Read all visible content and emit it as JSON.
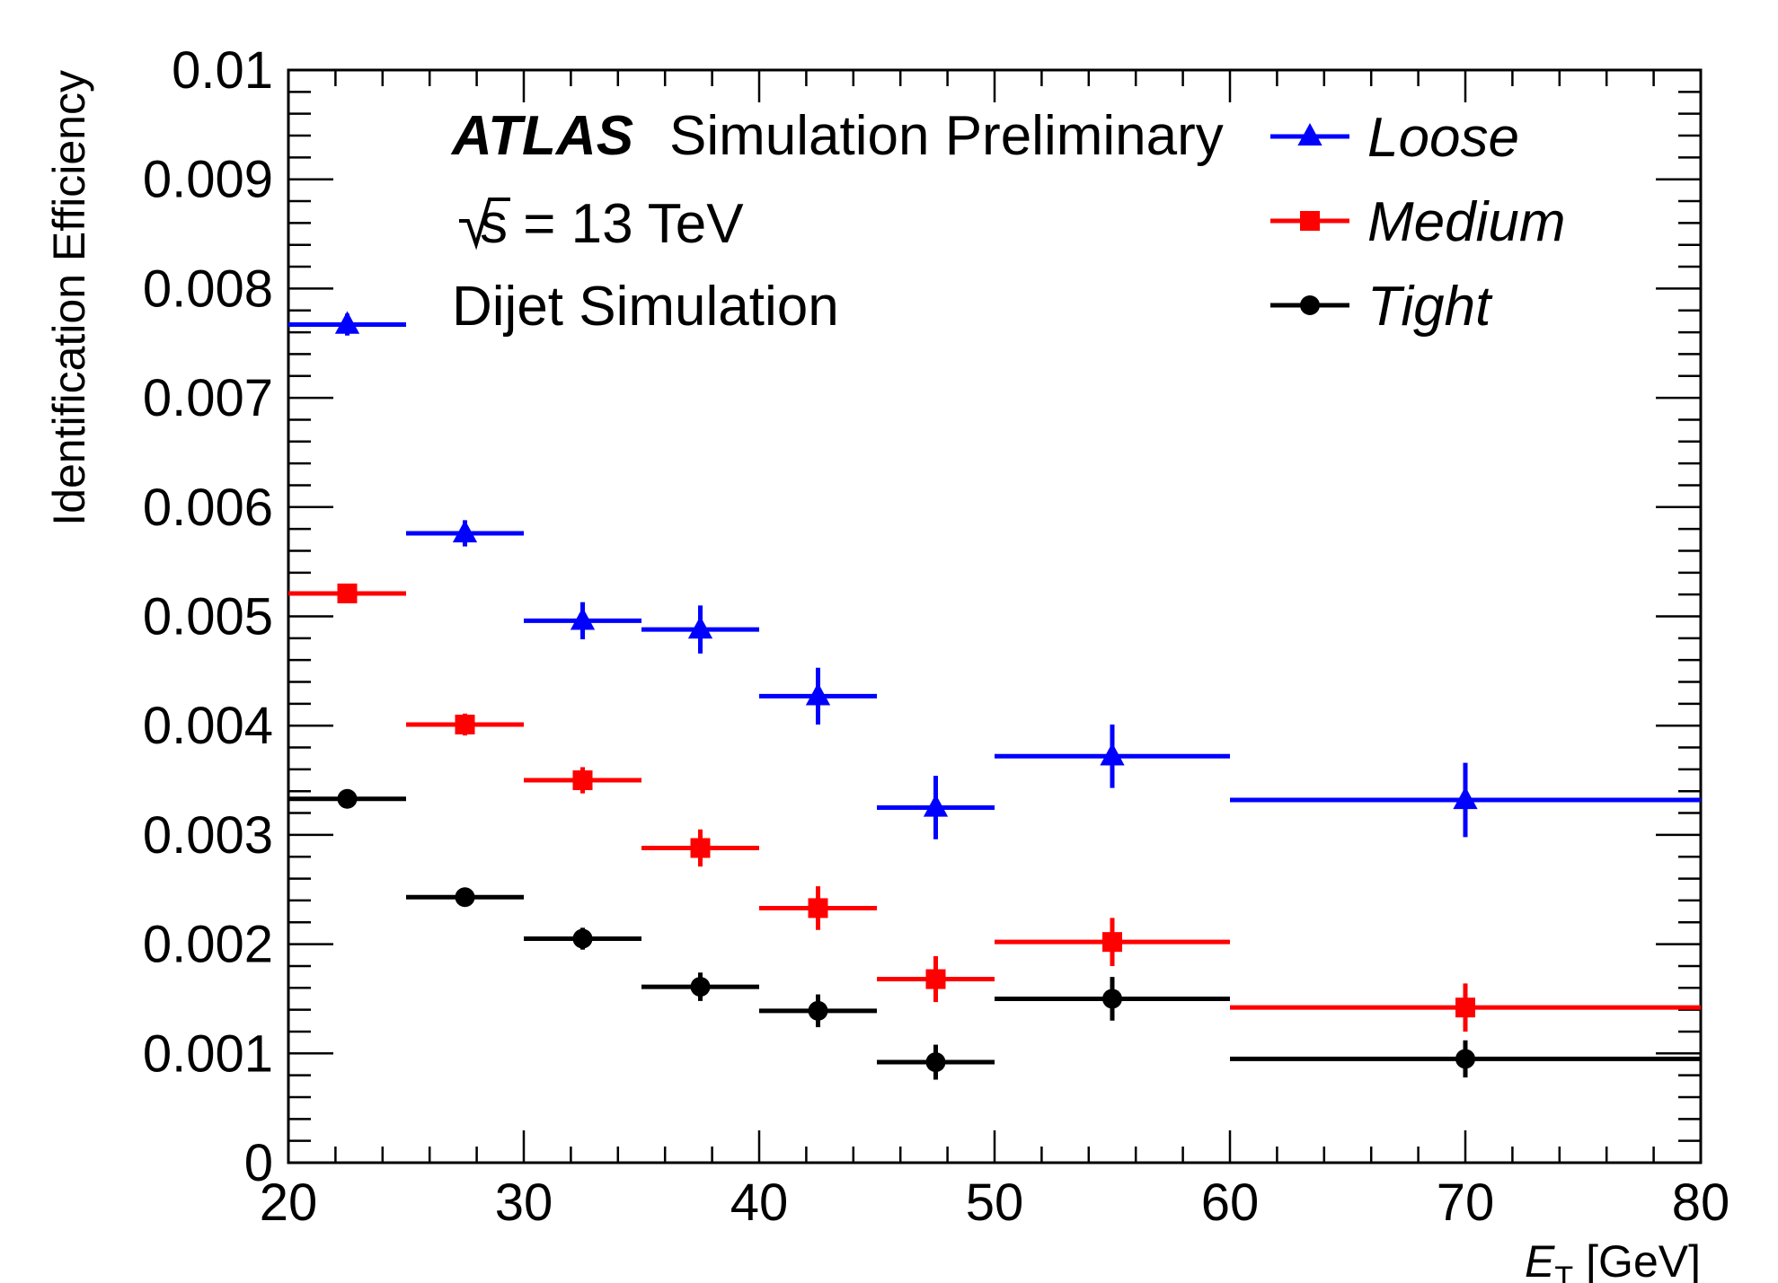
{
  "chart_data": {
    "type": "scatter",
    "title": "",
    "xlabel": {
      "symbol": "E",
      "subscript": "T",
      "unit": "[GeV]"
    },
    "ylabel": "Identification Efficiency",
    "xlim": [
      20,
      80
    ],
    "ylim": [
      0,
      0.01
    ],
    "x_ticks": [
      "20",
      "30",
      "40",
      "50",
      "60",
      "70",
      "80"
    ],
    "y_ticks": [
      "0",
      "0.001",
      "0.002",
      "0.003",
      "0.004",
      "0.005",
      "0.006",
      "0.007",
      "0.008",
      "0.009",
      "0.01"
    ],
    "annotations": {
      "atlas": "ATLAS",
      "status": "Simulation Preliminary",
      "energy": "s = 13 TeV",
      "sample": "Dijet Simulation"
    },
    "bins": [
      {
        "x": 22.5,
        "xlow": 20,
        "xhigh": 25
      },
      {
        "x": 27.5,
        "xlow": 25,
        "xhigh": 30
      },
      {
        "x": 32.5,
        "xlow": 30,
        "xhigh": 35
      },
      {
        "x": 37.5,
        "xlow": 35,
        "xhigh": 40
      },
      {
        "x": 42.5,
        "xlow": 40,
        "xhigh": 45
      },
      {
        "x": 47.5,
        "xlow": 45,
        "xhigh": 50
      },
      {
        "x": 55,
        "xlow": 50,
        "xhigh": 60
      },
      {
        "x": 70,
        "xlow": 60,
        "xhigh": 80
      }
    ],
    "series": [
      {
        "name": "Loose",
        "marker": "triangle",
        "color": "#0000ff",
        "values": [
          0.00767,
          0.00576,
          0.00496,
          0.00488,
          0.00427,
          0.00325,
          0.00372,
          0.00332
        ],
        "errors": [
          0.0001,
          0.00012,
          0.00017,
          0.00022,
          0.00026,
          0.00029,
          0.00029,
          0.00034
        ]
      },
      {
        "name": "Medium",
        "marker": "square",
        "color": "#ff0000",
        "values": [
          0.00521,
          0.00401,
          0.0035,
          0.00288,
          0.00233,
          0.00168,
          0.00202,
          0.00142
        ],
        "errors": [
          7e-05,
          0.0001,
          0.00012,
          0.00017,
          0.0002,
          0.00021,
          0.00022,
          0.00022
        ]
      },
      {
        "name": "Tight",
        "marker": "circle",
        "color": "#000000",
        "values": [
          0.00333,
          0.00243,
          0.00205,
          0.00161,
          0.00139,
          0.00092,
          0.0015,
          0.00095
        ],
        "errors": [
          5e-05,
          7e-05,
          0.0001,
          0.00013,
          0.00015,
          0.00016,
          0.0002,
          0.00017
        ]
      }
    ],
    "legend": {
      "position": "top-right",
      "entries": [
        "Loose",
        "Medium",
        "Tight"
      ]
    }
  }
}
